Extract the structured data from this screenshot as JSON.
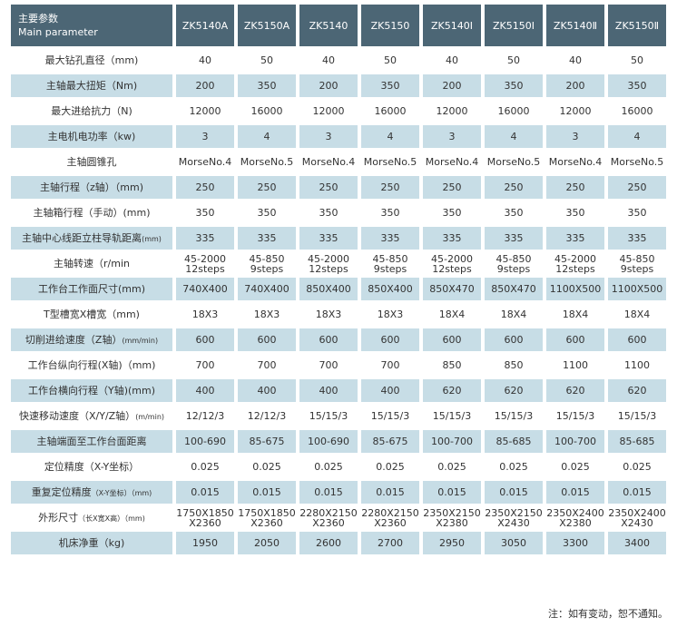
{
  "header": {
    "title": "主要参数",
    "subtitle": "Main parameter",
    "models": [
      "ZK5140A",
      "ZK5150A",
      "ZK5140",
      "ZK5150",
      "ZK5140Ⅰ",
      "ZK5150Ⅰ",
      "ZK5140Ⅱ",
      "ZK5150Ⅱ"
    ]
  },
  "table": {
    "rows": [
      {
        "label": "最大钻孔直径（mm)",
        "values": [
          "40",
          "50",
          "40",
          "50",
          "40",
          "50",
          "40",
          "50"
        ]
      },
      {
        "label": "主轴最大扭矩（Nm)",
        "values": [
          "200",
          "350",
          "200",
          "350",
          "200",
          "350",
          "200",
          "350"
        ]
      },
      {
        "label": "最大进给抗力（N)",
        "values": [
          "12000",
          "16000",
          "12000",
          "16000",
          "12000",
          "16000",
          "12000",
          "16000"
        ]
      },
      {
        "label": "主电机电功率（kw)",
        "values": [
          "3",
          "4",
          "3",
          "4",
          "3",
          "4",
          "3",
          "4"
        ]
      },
      {
        "label": "主轴圆锥孔",
        "values": [
          "MorseNo.4",
          "MorseNo.5",
          "MorseNo.4",
          "MorseNo.5",
          "MorseNo.4",
          "MorseNo.5",
          "MorseNo.4",
          "MorseNo.5"
        ]
      },
      {
        "label": "主轴行程（z轴）（mm)",
        "values": [
          "250",
          "250",
          "250",
          "250",
          "250",
          "250",
          "250",
          "250"
        ]
      },
      {
        "label": "主轴箱行程（手动）(mm)",
        "values": [
          "350",
          "350",
          "350",
          "350",
          "350",
          "350",
          "350",
          "350"
        ]
      },
      {
        "label": "主轴中心线距立柱导轨距离",
        "note": "(mm)",
        "values": [
          "335",
          "335",
          "335",
          "335",
          "335",
          "335",
          "335",
          "335"
        ]
      },
      {
        "label": "主轴转速（r/min",
        "values": [
          "45-2000\n12steps",
          "45-850\n9steps",
          "45-2000\n12steps",
          "45-850\n9steps",
          "45-2000\n12steps",
          "45-850\n9steps",
          "45-2000\n12steps",
          "45-850\n9steps"
        ]
      },
      {
        "label": "工作台工作面尺寸(mm)",
        "values": [
          "740X400",
          "740X400",
          "850X400",
          "850X400",
          "850X470",
          "850X470",
          "1100X500",
          "1100X500"
        ]
      },
      {
        "label": "T型槽宽X槽宽（mm)",
        "values": [
          "18X3",
          "18X3",
          "18X3",
          "18X3",
          "18X4",
          "18X4",
          "18X4",
          "18X4"
        ]
      },
      {
        "label": "切削进给速度（Z轴）",
        "note": "(mm/min)",
        "values": [
          "600",
          "600",
          "600",
          "600",
          "600",
          "600",
          "600",
          "600"
        ]
      },
      {
        "label": "工作台纵向行程(X轴)（mm)",
        "values": [
          "700",
          "700",
          "700",
          "700",
          "850",
          "850",
          "1100",
          "1100"
        ]
      },
      {
        "label": "工作台横向行程（Y轴)(mm)",
        "values": [
          "400",
          "400",
          "400",
          "400",
          "620",
          "620",
          "620",
          "620"
        ]
      },
      {
        "label": "快速移动速度（X/Y/Z轴）",
        "note": "(m/min)",
        "values": [
          "12/12/3",
          "12/12/3",
          "15/15/3",
          "15/15/3",
          "15/15/3",
          "15/15/3",
          "15/15/3",
          "15/15/3"
        ]
      },
      {
        "label": "主轴端面至工作台面距离",
        "values": [
          "100-690",
          "85-675",
          "100-690",
          "85-675",
          "100-700",
          "85-685",
          "100-700",
          "85-685"
        ]
      },
      {
        "label": "定位精度（X-Y坐标）",
        "values": [
          "0.025",
          "0.025",
          "0.025",
          "0.025",
          "0.025",
          "0.025",
          "0.025",
          "0.025"
        ]
      },
      {
        "label": "重复定位精度",
        "note": "（X-Y坐标）（mm)",
        "values": [
          "0.015",
          "0.015",
          "0.015",
          "0.015",
          "0.015",
          "0.015",
          "0.015",
          "0.015"
        ]
      },
      {
        "label": "外形尺寸",
        "note": "（长X宽X高）（mm)",
        "values": [
          "1750X1850\nX2360",
          "1750X1850\nX2360",
          "2280X2150\nX2360",
          "2280X2150\nX2360",
          "2350X2150\nX2380",
          "2350X2150\nX2430",
          "2350X2400\nX2380",
          "2350X2400\nX2430"
        ]
      },
      {
        "label": "机床净重（kg)",
        "values": [
          "1950",
          "2050",
          "2600",
          "2700",
          "2950",
          "3050",
          "3300",
          "3400"
        ]
      }
    ]
  },
  "footer": {
    "note": "注：如有变动，恕不通知。"
  }
}
